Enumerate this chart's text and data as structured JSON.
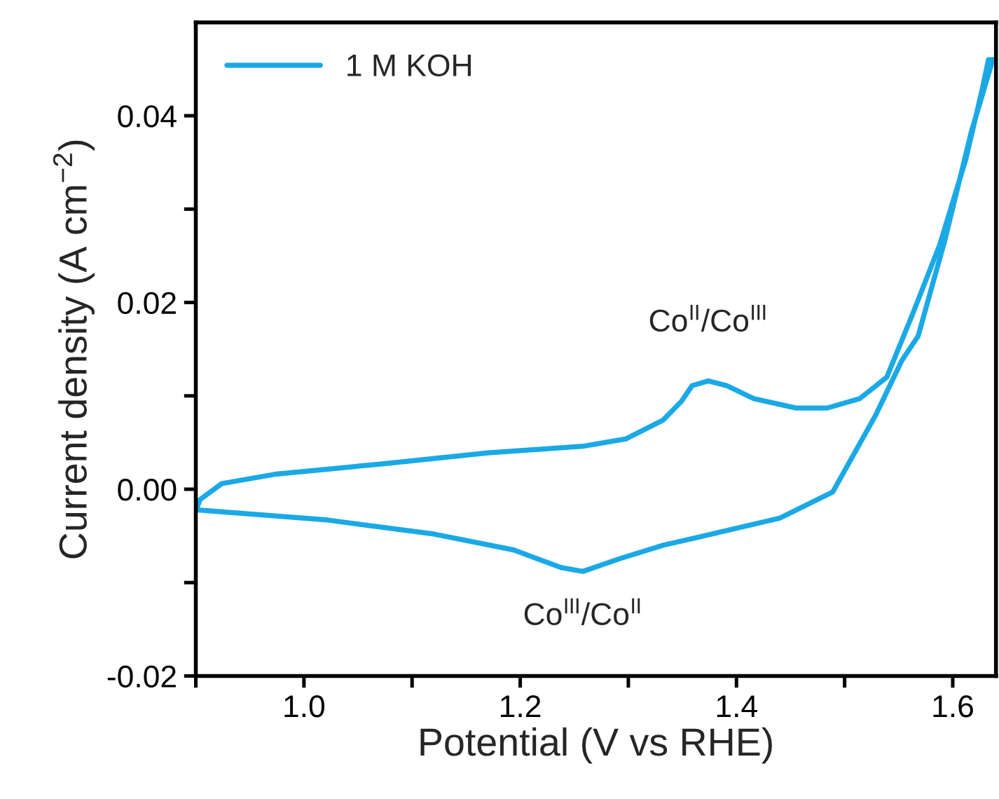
{
  "chart_data": {
    "type": "line",
    "xlabel": "Potential (V vs RHE)",
    "ylabel": "Current density (A cm$^{−2}$)",
    "series": [
      {
        "name": "1 M KOH",
        "color": "#1ba9e6",
        "x": [
          0.9,
          0.904,
          0.924,
          0.973,
          1.071,
          1.17,
          1.258,
          1.298,
          1.332,
          1.349,
          1.359,
          1.374,
          1.391,
          1.416,
          1.455,
          1.484,
          1.514,
          1.539,
          1.563,
          1.588,
          1.612,
          1.627,
          1.633,
          1.637,
          1.617,
          1.593,
          1.568,
          1.553,
          1.529,
          1.489,
          1.44,
          1.366,
          1.332,
          1.293,
          1.258,
          1.238,
          1.194,
          1.12,
          1.022,
          0.9
        ],
        "values": [
          -0.0023,
          -0.0011,
          0.0006,
          0.0016,
          0.0027,
          0.0039,
          0.0046,
          0.0054,
          0.0074,
          0.0094,
          0.0111,
          0.0116,
          0.0111,
          0.0097,
          0.0087,
          0.0087,
          0.0097,
          0.012,
          0.0188,
          0.0262,
          0.0353,
          0.0427,
          0.046,
          0.046,
          0.0382,
          0.0268,
          0.0164,
          0.0138,
          0.008,
          -0.0003,
          -0.0031,
          -0.0051,
          -0.006,
          -0.0074,
          -0.0088,
          -0.0084,
          -0.0065,
          -0.0048,
          -0.0033,
          -0.0022
        ]
      }
    ],
    "annotations": [
      {
        "text": "Co$^{II}$/Co$^{III}$",
        "x": 1.374,
        "y": 0.0116
      },
      {
        "text": "Co$^{III}$/Co$^{II}$",
        "x": 1.258,
        "y": -0.0088
      }
    ],
    "xlim": [
      0.9,
      1.64
    ],
    "ylim": [
      -0.02,
      0.05
    ],
    "xticks": [
      {
        "value": 0.9,
        "label": null
      },
      {
        "value": 1.0,
        "label": "1.0"
      },
      {
        "value": 1.1,
        "label": null
      },
      {
        "value": 1.2,
        "label": "1.2"
      },
      {
        "value": 1.3,
        "label": null
      },
      {
        "value": 1.4,
        "label": "1.4"
      },
      {
        "value": 1.5,
        "label": null
      },
      {
        "value": 1.6,
        "label": "1.6"
      }
    ],
    "yticks": [
      {
        "value": -0.02,
        "label": "-0.02"
      },
      {
        "value": -0.01,
        "label": null
      },
      {
        "value": 0.0,
        "label": "0.00"
      },
      {
        "value": 0.01,
        "label": null
      },
      {
        "value": 0.02,
        "label": "0.02"
      },
      {
        "value": 0.03,
        "label": null
      },
      {
        "value": 0.04,
        "label": "0.04"
      }
    ],
    "legend": "top left",
    "grid": false,
    "marker": "none",
    "line_style": "solid"
  }
}
